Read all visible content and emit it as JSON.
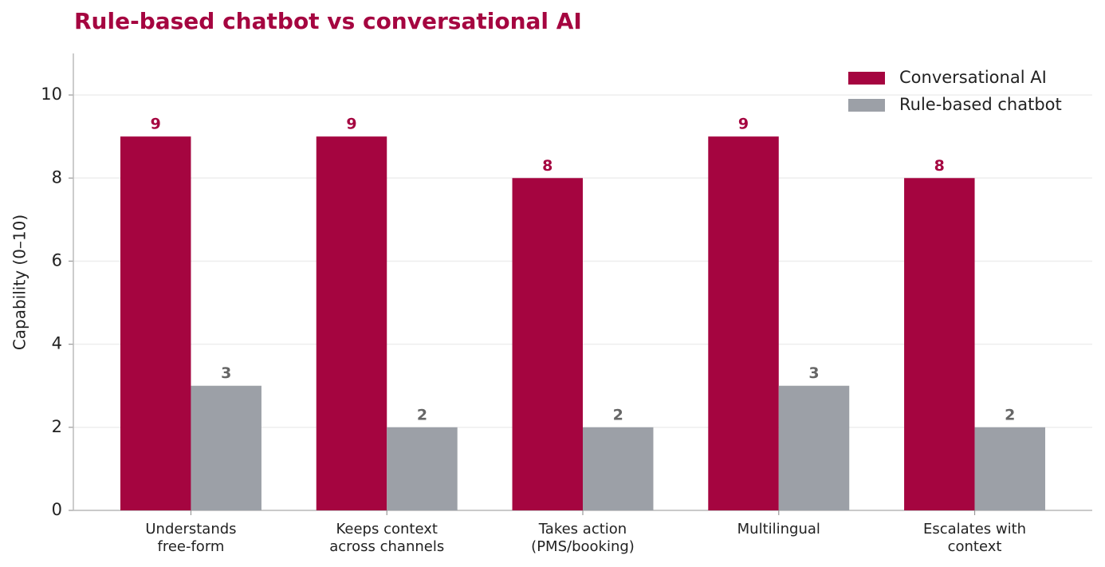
{
  "chart_data": {
    "type": "bar",
    "title": "Rule-based chatbot vs conversational AI",
    "y_label": "Capability (0–10)",
    "categories": [
      "Understands\nfree-form",
      "Keeps context\nacross channels",
      "Takes action\n(PMS/booking)",
      "Multilingual",
      "Escalates with\ncontext"
    ],
    "series": [
      {
        "name": "Conversational AI",
        "color": "#a50540",
        "label_color": "#a50540",
        "values": [
          9,
          9,
          8,
          9,
          8
        ]
      },
      {
        "name": "Rule-based chatbot",
        "color": "#9ca0a7",
        "label_color": "#666666",
        "values": [
          3,
          2,
          2,
          3,
          2
        ]
      }
    ],
    "ylim": [
      0,
      11
    ],
    "yticks": [
      0,
      2,
      4,
      6,
      8,
      10
    ],
    "grid": true,
    "legend": "upper right"
  }
}
